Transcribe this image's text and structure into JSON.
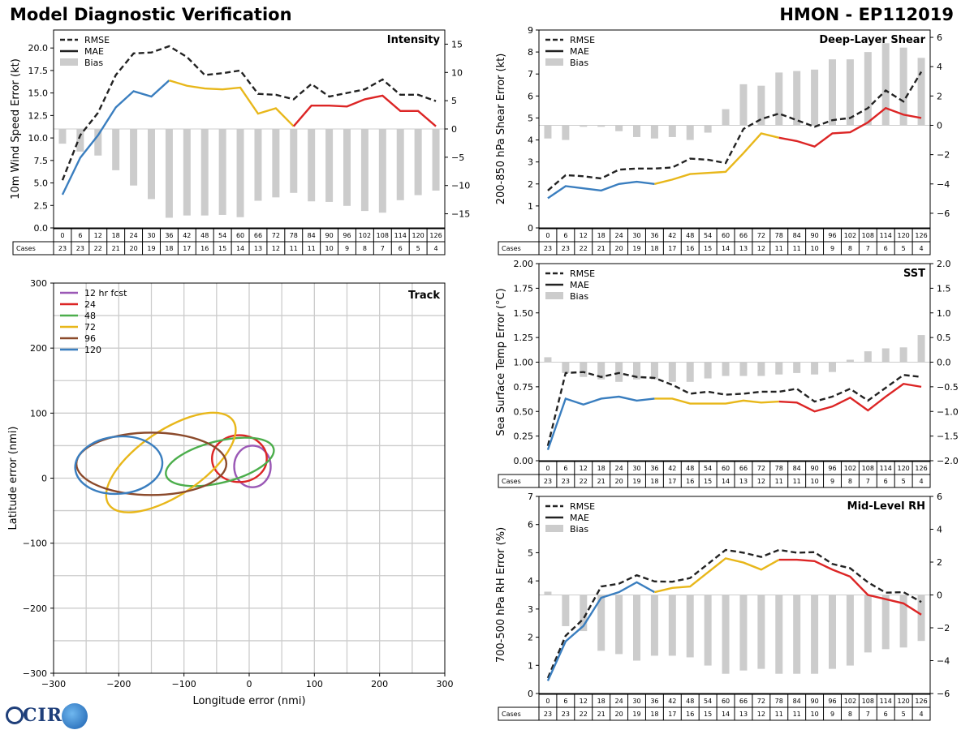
{
  "header": {
    "title": "Model Diagnostic Verification",
    "storm": "HMON - EP112019"
  },
  "logo": {
    "text": "CIRA"
  },
  "legend_labels": {
    "rmse": "RMSE",
    "mae": "MAE",
    "bias": "Bias"
  },
  "colors": {
    "blue": "#3a7ebf",
    "yellow": "#e8b71a",
    "red": "#dc2525",
    "rmse": "#222222",
    "bias": "#cccccc",
    "grid": "#cccccc",
    "green": "#4cae4c",
    "purple": "#9b59b6",
    "brown": "#8b4a2b"
  },
  "cases_label": "Cases",
  "leads": [
    "0",
    "6",
    "12",
    "18",
    "24",
    "30",
    "36",
    "42",
    "48",
    "54",
    "60",
    "66",
    "72",
    "78",
    "84",
    "90",
    "96",
    "102",
    "108",
    "114",
    "120",
    "126"
  ],
  "cases": [
    "23",
    "23",
    "22",
    "21",
    "20",
    "19",
    "18",
    "17",
    "16",
    "15",
    "14",
    "13",
    "12",
    "11",
    "11",
    "10",
    "9",
    "8",
    "7",
    "6",
    "5",
    "4"
  ],
  "chart_data": [
    {
      "id": "intensity",
      "type": "line",
      "title": "Intensity",
      "ylabel": "10m Wind Speed Error (kt)",
      "ylim": [
        0,
        22
      ],
      "yticks": [
        "0.0",
        "2.5",
        "5.0",
        "7.5",
        "10.0",
        "12.5",
        "15.0",
        "17.5",
        "20.0"
      ],
      "y2lim": [
        -17.5,
        17.5
      ],
      "y2ticks": [
        "−15",
        "−10",
        "−5",
        "0",
        "5",
        "10",
        "15"
      ],
      "x": [
        0,
        6,
        12,
        18,
        24,
        30,
        36,
        42,
        48,
        54,
        60,
        66,
        72,
        78,
        84,
        90,
        96,
        102,
        108,
        114,
        120,
        126
      ],
      "rmse": [
        5.3,
        10.3,
        12.8,
        17.0,
        19.4,
        19.5,
        20.2,
        19.0,
        17.0,
        17.2,
        17.5,
        14.9,
        14.8,
        14.3,
        16.0,
        14.6,
        15.0,
        15.4,
        16.5,
        14.8,
        14.8,
        14.1
      ],
      "mae": [
        3.7,
        7.8,
        10.3,
        13.4,
        15.2,
        14.6,
        16.4,
        15.8,
        15.5,
        15.4,
        15.6,
        12.7,
        13.3,
        11.3,
        13.6,
        13.6,
        13.5,
        14.3,
        14.7,
        13.0,
        13.0,
        11.3
      ],
      "bias": [
        -2.6,
        -4.0,
        -4.7,
        -7.3,
        -10.0,
        -12.4,
        -15.7,
        -15.3,
        -15.3,
        -15.2,
        -15.6,
        -12.7,
        -12.1,
        -11.3,
        -12.8,
        -12.9,
        -13.6,
        -14.5,
        -14.8,
        -12.6,
        -11.7,
        -10.9
      ]
    },
    {
      "id": "shear",
      "type": "line",
      "title": "Deep-Layer Shear",
      "ylabel": "200-850 hPa Shear Error (kt)",
      "ylim": [
        0,
        9
      ],
      "yticks": [
        "0",
        "1",
        "2",
        "3",
        "4",
        "5",
        "6",
        "7",
        "8",
        "9"
      ],
      "y2lim": [
        -7,
        6.5
      ],
      "y2ticks": [
        "−6",
        "−4",
        "−2",
        "0",
        "2",
        "4",
        "6"
      ],
      "x": [
        0,
        6,
        12,
        18,
        24,
        30,
        36,
        42,
        48,
        54,
        60,
        66,
        72,
        78,
        84,
        90,
        96,
        102,
        108,
        114,
        120,
        126
      ],
      "rmse": [
        1.7,
        2.4,
        2.35,
        2.25,
        2.65,
        2.7,
        2.7,
        2.75,
        3.15,
        3.1,
        2.95,
        4.5,
        4.95,
        5.2,
        4.9,
        4.6,
        4.9,
        5.0,
        5.45,
        6.25,
        5.75,
        7.1
      ],
      "mae": [
        1.35,
        1.9,
        1.8,
        1.7,
        2.0,
        2.1,
        2.0,
        2.2,
        2.45,
        2.5,
        2.55,
        3.4,
        4.3,
        4.1,
        3.95,
        3.7,
        4.3,
        4.35,
        4.8,
        5.45,
        5.15,
        5.0
      ],
      "bias": [
        -0.9,
        -1.0,
        -0.1,
        -0.1,
        -0.4,
        -0.8,
        -0.9,
        -0.8,
        -1.0,
        -0.5,
        1.1,
        2.8,
        2.7,
        3.6,
        3.7,
        3.8,
        4.5,
        4.5,
        5.0,
        5.6,
        5.3,
        4.6
      ]
    },
    {
      "id": "sst",
      "type": "line",
      "title": "SST",
      "ylabel": "Sea Surface Temp Error (°C)",
      "ylim": [
        0,
        2.0
      ],
      "yticks": [
        "0.00",
        "0.25",
        "0.50",
        "0.75",
        "1.00",
        "1.25",
        "1.50",
        "1.75",
        "2.00"
      ],
      "y2lim": [
        -2.0,
        2.0
      ],
      "y2ticks": [
        "−2.0",
        "−1.5",
        "−1.0",
        "−0.5",
        "0.0",
        "0.5",
        "1.0",
        "1.5",
        "2.0"
      ],
      "x": [
        0,
        6,
        12,
        18,
        24,
        30,
        36,
        42,
        48,
        54,
        60,
        66,
        72,
        78,
        84,
        90,
        96,
        102,
        108,
        114,
        120,
        126
      ],
      "rmse": [
        0.15,
        0.89,
        0.9,
        0.85,
        0.89,
        0.85,
        0.84,
        0.77,
        0.68,
        0.7,
        0.67,
        0.68,
        0.7,
        0.7,
        0.73,
        0.6,
        0.65,
        0.73,
        0.61,
        0.74,
        0.87,
        0.85
      ],
      "mae": [
        0.11,
        0.63,
        0.57,
        0.63,
        0.65,
        0.61,
        0.63,
        0.63,
        0.58,
        0.58,
        0.58,
        0.61,
        0.59,
        0.6,
        0.59,
        0.5,
        0.55,
        0.64,
        0.51,
        0.65,
        0.78,
        0.75
      ],
      "bias": [
        0.1,
        -0.22,
        -0.3,
        -0.35,
        -0.4,
        -0.35,
        -0.35,
        -0.4,
        -0.4,
        -0.33,
        -0.28,
        -0.28,
        -0.28,
        -0.25,
        -0.22,
        -0.25,
        -0.2,
        0.05,
        0.22,
        0.28,
        0.3,
        0.55
      ]
    },
    {
      "id": "rh",
      "type": "line",
      "title": "Mid-Level RH",
      "ylabel": "700-500 hPa RH Error (%)",
      "ylim": [
        0,
        7
      ],
      "yticks": [
        "0",
        "1",
        "2",
        "3",
        "4",
        "5",
        "6",
        "7"
      ],
      "y2lim": [
        -6,
        6
      ],
      "y2ticks": [
        "−6",
        "−4",
        "−2",
        "0",
        "2",
        "4",
        "6"
      ],
      "x": [
        0,
        6,
        12,
        18,
        24,
        30,
        36,
        42,
        48,
        54,
        60,
        66,
        72,
        78,
        84,
        90,
        96,
        102,
        108,
        114,
        120,
        126
      ],
      "rmse": [
        0.55,
        2.05,
        2.65,
        3.8,
        3.9,
        4.2,
        3.98,
        3.97,
        4.1,
        4.6,
        5.1,
        5.0,
        4.85,
        5.1,
        5.0,
        5.02,
        4.6,
        4.45,
        3.95,
        3.58,
        3.6,
        3.25
      ],
      "mae": [
        0.45,
        1.85,
        2.4,
        3.4,
        3.6,
        3.95,
        3.6,
        3.75,
        3.8,
        4.3,
        4.8,
        4.65,
        4.4,
        4.75,
        4.75,
        4.7,
        4.4,
        4.15,
        3.5,
        3.35,
        3.2,
        2.8
      ],
      "bias": [
        0.2,
        -1.9,
        -2.2,
        -3.4,
        -3.6,
        -4.0,
        -3.7,
        -3.7,
        -3.8,
        -4.3,
        -4.8,
        -4.6,
        -4.5,
        -4.8,
        -4.8,
        -4.8,
        -4.5,
        -4.3,
        -3.5,
        -3.3,
        -3.2,
        -2.8
      ]
    },
    {
      "id": "track",
      "type": "scatter",
      "title": "Track",
      "xlabel": "Longitude error (nmi)",
      "ylabel": "Latitude error (nmi)",
      "xlim": [
        -300,
        300
      ],
      "ylim": [
        -300,
        300
      ],
      "ticks": [
        "−300",
        "−200",
        "−100",
        "0",
        "100",
        "200",
        "300"
      ],
      "legend": [
        "12 hr fcst",
        "24",
        "48",
        "72",
        "96",
        "120"
      ],
      "ellipses": [
        {
          "name": "12 hr fcst",
          "color": "#9b59b6",
          "cx": 5,
          "cy": 18,
          "rx": 28,
          "ry": 32,
          "angle": 0
        },
        {
          "name": "24",
          "color": "#dc2525",
          "cx": -15,
          "cy": 30,
          "rx": 42,
          "ry": 36,
          "angle": 0
        },
        {
          "name": "48",
          "color": "#4cae4c",
          "cx": -45,
          "cy": 25,
          "rx": 85,
          "ry": 32,
          "angle": -14
        },
        {
          "name": "72",
          "color": "#e8b71a",
          "cx": -120,
          "cy": 24,
          "rx": 115,
          "ry": 50,
          "angle": -34
        },
        {
          "name": "96",
          "color": "#8b4a2b",
          "cx": -150,
          "cy": 22,
          "rx": 115,
          "ry": 48,
          "angle": 0
        },
        {
          "name": "120",
          "color": "#3a7ebf",
          "cx": -200,
          "cy": 20,
          "rx": 67,
          "ry": 44,
          "angle": -5
        }
      ]
    }
  ]
}
